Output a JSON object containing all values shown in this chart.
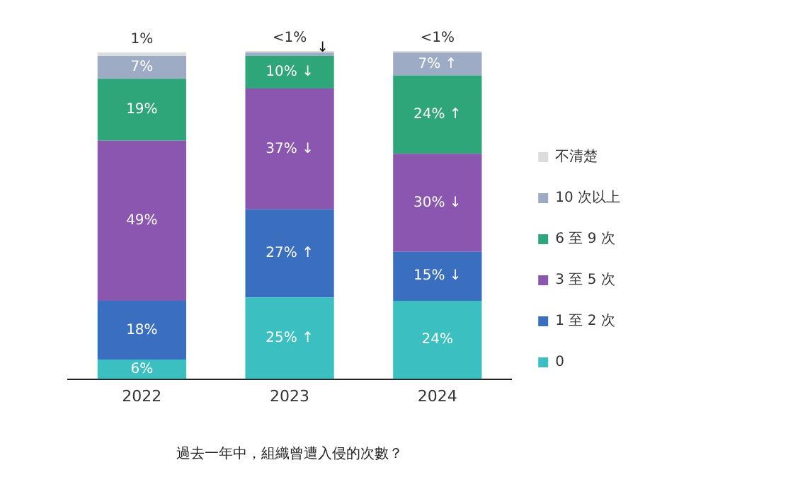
{
  "chart_data": {
    "type": "bar",
    "stacked": true,
    "categories": [
      "2022",
      "2023",
      "2024"
    ],
    "xlabel": "過去一年中，組織曾遭入侵的次數？",
    "legend": "right",
    "grid": false,
    "series": [
      {
        "name": "0",
        "color": "#3bbfc0",
        "values": [
          6,
          25,
          24
        ],
        "value_labels": [
          "6%",
          "25% ↑",
          "24%"
        ]
      },
      {
        "name": "1 至 2 次",
        "color": "#3a6fc0",
        "values": [
          18,
          27,
          15
        ],
        "value_labels": [
          "18%",
          "27% ↑",
          "15% ↓"
        ]
      },
      {
        "name": "3 至 5 次",
        "color": "#8a56b0",
        "values": [
          49,
          37,
          30
        ],
        "value_labels": [
          "49%",
          "37% ↓",
          "30% ↓"
        ]
      },
      {
        "name": "6 至 9 次",
        "color": "#2fa57a",
        "values": [
          19,
          10,
          24
        ],
        "value_labels": [
          "19%",
          "10% ↓",
          "24% ↑"
        ]
      },
      {
        "name": "10 次以上",
        "color": "#9eabc4",
        "values": [
          7,
          1,
          7
        ],
        "value_labels": [
          "7%",
          "↓",
          "7% ↑"
        ]
      },
      {
        "name": "不清楚",
        "color": "#dcdcdc",
        "values": [
          1,
          0.5,
          0.5
        ],
        "value_labels": [
          "1%",
          "<1%",
          "<1%"
        ]
      }
    ]
  }
}
